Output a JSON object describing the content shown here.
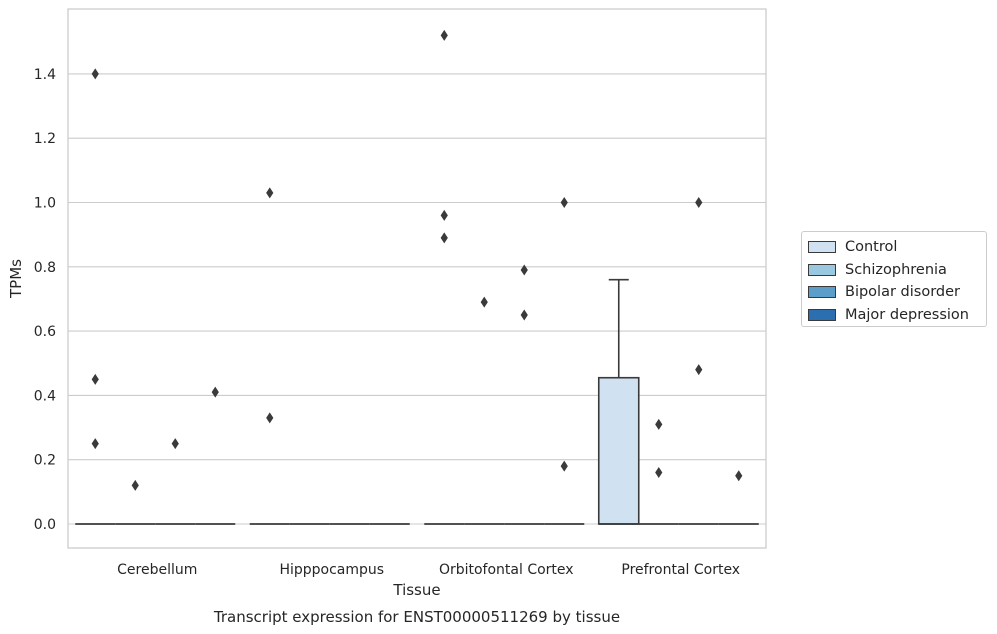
{
  "chart_data": {
    "type": "box",
    "title": "Transcript expression for ENST00000511269 by tissue",
    "xlabel": "Tissue",
    "ylabel": "TPMs",
    "ylim": [
      -0.075,
      1.6
    ],
    "yticks": [
      "0.0",
      "0.2",
      "0.4",
      "0.6",
      "0.8",
      "1.0",
      "1.2",
      "1.4"
    ],
    "grid": true,
    "legend_position": "right",
    "categories": [
      "Cerebellum",
      "Hipppocampus",
      "Orbitofontal Cortex",
      "Prefrontal Cortex"
    ],
    "series": [
      {
        "name": "Control",
        "color": "#d0e1f2"
      },
      {
        "name": "Schizophrenia",
        "color": "#9ac8e0"
      },
      {
        "name": "Bipolar disorder",
        "color": "#5a9ec9"
      },
      {
        "name": "Major depression",
        "color": "#2c6fb0"
      }
    ],
    "boxes": [
      {
        "category": "Cerebellum",
        "series": "Control",
        "whislo": 0,
        "q1": 0,
        "med": 0,
        "q3": 0,
        "whishi": 0,
        "fliers": [
          1.4,
          0.45,
          0.25
        ]
      },
      {
        "category": "Cerebellum",
        "series": "Schizophrenia",
        "whislo": 0,
        "q1": 0,
        "med": 0,
        "q3": 0,
        "whishi": 0,
        "fliers": [
          0.12
        ]
      },
      {
        "category": "Cerebellum",
        "series": "Bipolar disorder",
        "whislo": 0,
        "q1": 0,
        "med": 0,
        "q3": 0,
        "whishi": 0,
        "fliers": [
          0.25
        ]
      },
      {
        "category": "Cerebellum",
        "series": "Major depression",
        "whislo": 0,
        "q1": 0,
        "med": 0,
        "q3": 0,
        "whishi": 0,
        "fliers": [
          0.41
        ]
      },
      {
        "category": "Hipppocampus",
        "series": "Control",
        "whislo": 0,
        "q1": 0,
        "med": 0,
        "q3": 0,
        "whishi": 0,
        "fliers": [
          1.03,
          0.33
        ]
      },
      {
        "category": "Hipppocampus",
        "series": "Schizophrenia",
        "whislo": 0,
        "q1": 0,
        "med": 0,
        "q3": 0,
        "whishi": 0,
        "fliers": []
      },
      {
        "category": "Hipppocampus",
        "series": "Bipolar disorder",
        "whislo": 0,
        "q1": 0,
        "med": 0,
        "q3": 0,
        "whishi": 0,
        "fliers": []
      },
      {
        "category": "Hipppocampus",
        "series": "Major depression",
        "whislo": 0,
        "q1": 0,
        "med": 0,
        "q3": 0,
        "whishi": 0,
        "fliers": []
      },
      {
        "category": "Orbitofontal Cortex",
        "series": "Control",
        "whislo": 0,
        "q1": 0,
        "med": 0,
        "q3": 0,
        "whishi": 0,
        "fliers": [
          1.52,
          0.96,
          0.89
        ]
      },
      {
        "category": "Orbitofontal Cortex",
        "series": "Schizophrenia",
        "whislo": 0,
        "q1": 0,
        "med": 0,
        "q3": 0,
        "whishi": 0,
        "fliers": [
          0.69
        ]
      },
      {
        "category": "Orbitofontal Cortex",
        "series": "Bipolar disorder",
        "whislo": 0,
        "q1": 0,
        "med": 0,
        "q3": 0,
        "whishi": 0,
        "fliers": [
          0.79,
          0.65
        ]
      },
      {
        "category": "Orbitofontal Cortex",
        "series": "Major depression",
        "whislo": 0,
        "q1": 0,
        "med": 0,
        "q3": 0,
        "whishi": 0,
        "fliers": [
          1.0,
          0.18
        ]
      },
      {
        "category": "Prefrontal Cortex",
        "series": "Control",
        "whislo": 0,
        "q1": 0,
        "med": 0,
        "q3": 0.455,
        "whishi": 0.76,
        "fliers": []
      },
      {
        "category": "Prefrontal Cortex",
        "series": "Schizophrenia",
        "whislo": 0,
        "q1": 0,
        "med": 0,
        "q3": 0,
        "whishi": 0,
        "fliers": [
          0.31,
          0.16
        ]
      },
      {
        "category": "Prefrontal Cortex",
        "series": "Bipolar disorder",
        "whislo": 0,
        "q1": 0,
        "med": 0,
        "q3": 0,
        "whishi": 0,
        "fliers": [
          1.0,
          0.48
        ]
      },
      {
        "category": "Prefrontal Cortex",
        "series": "Major depression",
        "whislo": 0,
        "q1": 0,
        "med": 0,
        "q3": 0,
        "whishi": 0,
        "fliers": [
          0.15
        ]
      }
    ]
  }
}
